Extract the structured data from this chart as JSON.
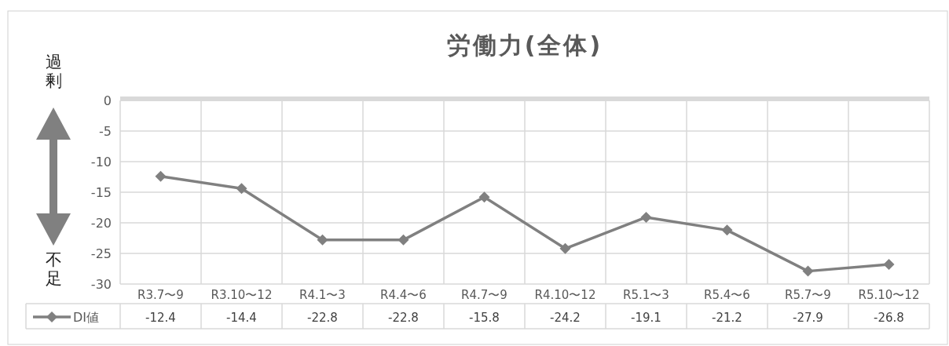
{
  "chart_data": {
    "type": "line",
    "title": "労働力(全体)",
    "categories": [
      "R3.7〜9",
      "R3.10〜12",
      "R4.1〜3",
      "R4.4〜6",
      "R4.7〜9",
      "R4.10〜12",
      "R5.1〜3",
      "R5.4〜6",
      "R5.7〜9",
      "R5.10〜12"
    ],
    "series": [
      {
        "name": "DI値",
        "color": "#808080",
        "values": [
          -12.4,
          -14.4,
          -22.8,
          -22.8,
          -15.8,
          -24.2,
          -19.1,
          -21.2,
          -27.9,
          -26.8
        ]
      }
    ],
    "ylim": [
      -30,
      0
    ],
    "yticks": [
      0,
      -5,
      -10,
      -15,
      -20,
      -25,
      -30
    ],
    "annotations": [
      "過剰",
      "不足"
    ],
    "data_labels": true,
    "grid": true,
    "marker": "diamond",
    "line_style": "solid",
    "legend": "bottom"
  }
}
